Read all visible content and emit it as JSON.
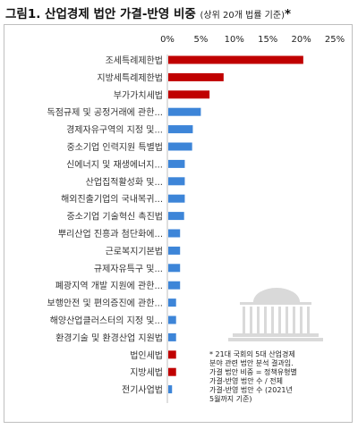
{
  "title": "그림1. 산업경제 법안 가결-반영 비중",
  "subtitle": "(상위 20개 법률 기준)",
  "title_mark": "*",
  "chart_data": {
    "type": "bar",
    "orientation": "horizontal",
    "xlim": [
      0,
      25
    ],
    "x_ticks": [
      "0%",
      "5%",
      "10%",
      "15%",
      "20%",
      "25%"
    ],
    "categories": [
      "조세특례제한법",
      "지방세특례제한법",
      "부가가치세법",
      "독점규제 및 공정거래에 관한...",
      "경제자유구역의 지정 및...",
      "중소기업 인력지원 특별법",
      "신에너지 및 재생에너지...",
      "산업집적활성화 및...",
      "해외진출기업의 국내복귀...",
      "중소기업 기술혁신 촉진법",
      "뿌리산업 진흥과 첨단화에...",
      "근로복지기본법",
      "규제자유특구 및...",
      "폐광지역 개발 지원에 관한...",
      "보행안전 및 편의증진에 관한...",
      "해양산업클러스터의 지정 및...",
      "환경기술 및 환경산업 지원법",
      "법인세법",
      "지방세법",
      "전기사업법"
    ],
    "values": [
      20.3,
      8.4,
      6.3,
      5.0,
      3.8,
      3.7,
      2.6,
      2.6,
      2.6,
      2.5,
      1.9,
      1.9,
      1.9,
      1.9,
      1.3,
      1.3,
      1.3,
      1.3,
      1.3,
      0.7
    ],
    "bar_colors": [
      "#c00000",
      "#c00000",
      "#c00000",
      "#3d85d8",
      "#3d85d8",
      "#3d85d8",
      "#3d85d8",
      "#3d85d8",
      "#3d85d8",
      "#3d85d8",
      "#3d85d8",
      "#3d85d8",
      "#3d85d8",
      "#3d85d8",
      "#3d85d8",
      "#3d85d8",
      "#3d85d8",
      "#c00000",
      "#c00000",
      "#3d85d8"
    ],
    "grid": false
  },
  "note_lines": [
    "* 21대 국회의 5대 산업경제",
    "분야 관련 법안 분석 결과임.",
    "가결 법안 비중 = 정책유형별",
    "가결-반영 법안 수 / 전체",
    "가결-반영 법안 수 (2021년",
    "5월까지 기준)"
  ],
  "logo": "national-assembly-building-icon"
}
